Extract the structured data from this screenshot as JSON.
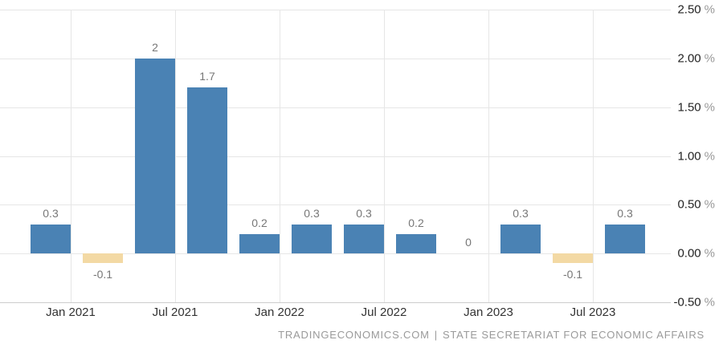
{
  "chart_data": {
    "type": "bar",
    "title": "",
    "values": [
      0.3,
      -0.1,
      2,
      1.7,
      0.2,
      0.3,
      0.3,
      0.2,
      0,
      0.3,
      -0.1,
      0.3
    ],
    "bar_labels": [
      "0.3",
      "-0.1",
      "2",
      "1.7",
      "0.2",
      "0.3",
      "0.3",
      "0.2",
      "0",
      "0.3",
      "-0.1",
      "0.3"
    ],
    "x_tick_labels": [
      "Jan 2021",
      "Jul 2021",
      "Jan 2022",
      "Jul 2022",
      "Jan 2023",
      "Jul 2023"
    ],
    "y_tick_labels": [
      "2.50",
      "2.00",
      "1.50",
      "1.00",
      "0.50",
      "0.00",
      "-0.50"
    ],
    "y_unit": "%",
    "ylim": [
      -0.5,
      2.5
    ],
    "grid": true,
    "legend": "none",
    "x_ticks_between_bar_pairs": true,
    "positive_color": "#4a82b4",
    "negative_color": "#f3d9a4",
    "gridline_color": "#e6e6e6",
    "axis_line_color": "#cccccc"
  },
  "footer": {
    "left": "TRADINGECONOMICS.COM",
    "separator": "|",
    "right": "STATE SECRETARIAT FOR ECONOMIC AFFAIRS"
  }
}
